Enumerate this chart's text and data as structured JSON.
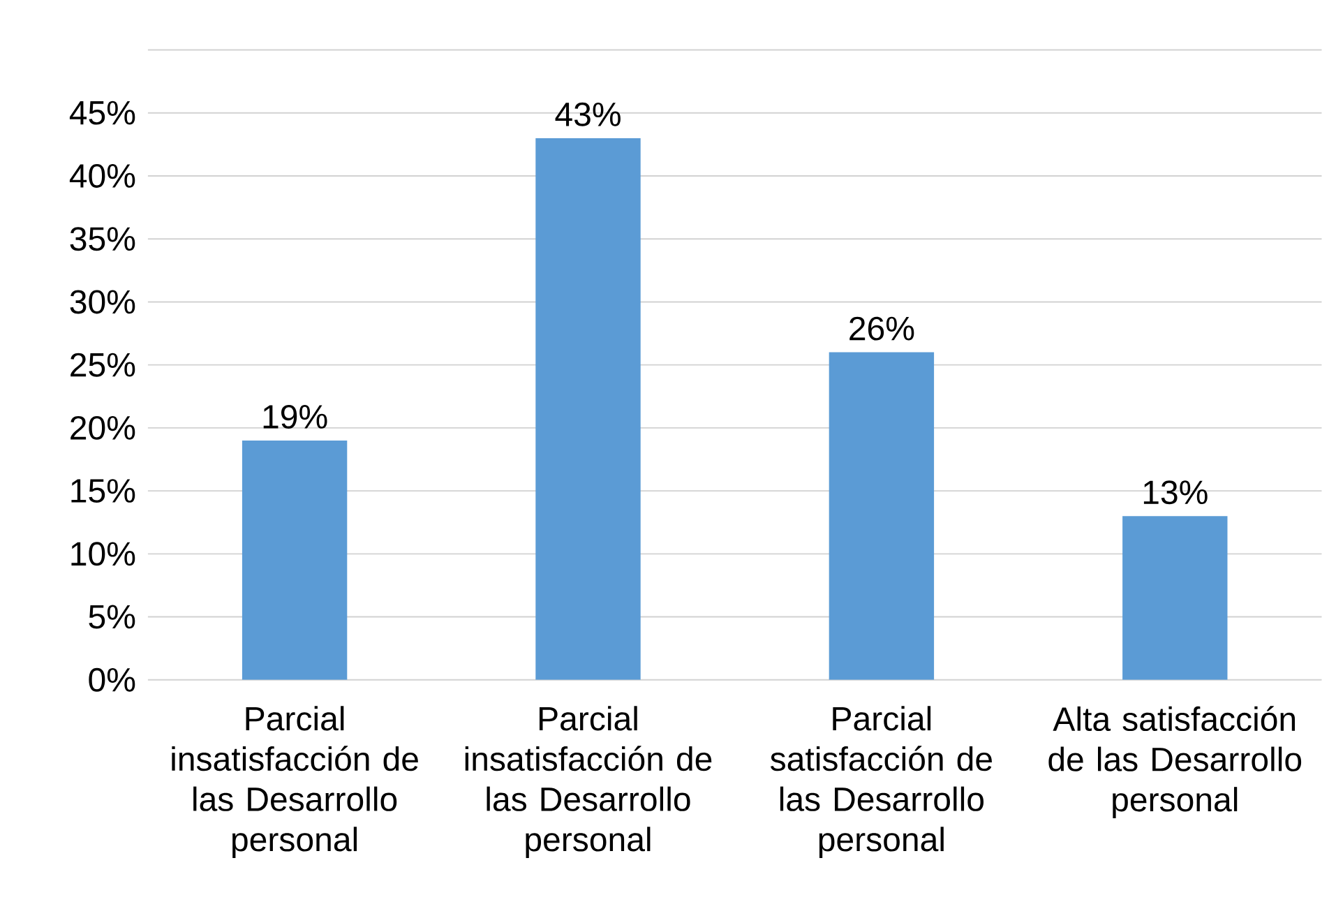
{
  "chart_data": {
    "type": "bar",
    "categories": [
      "Parcial insatisfacción de las Desarrollo personal",
      "Parcial insatisfacción de las Desarrollo personal",
      "Parcial satisfacción de las Desarrollo personal",
      "Alta satisfacción de las Desarrollo personal"
    ],
    "values": [
      19,
      43,
      26,
      13
    ],
    "value_labels": [
      "19%",
      "43%",
      "26%",
      "13%"
    ],
    "color": "#5b9bd5",
    "ylim": [
      0,
      50
    ],
    "yticks": [
      {
        "value": 0,
        "label": "0%"
      },
      {
        "value": 5,
        "label": "5%"
      },
      {
        "value": 10,
        "label": "10%"
      },
      {
        "value": 15,
        "label": "15%"
      },
      {
        "value": 20,
        "label": "20%"
      },
      {
        "value": 25,
        "label": "25%"
      },
      {
        "value": 30,
        "label": "30%"
      },
      {
        "value": 35,
        "label": "35%"
      },
      {
        "value": 40,
        "label": "40%"
      },
      {
        "value": 45,
        "label": "45%"
      },
      {
        "value": 50,
        "label": null
      }
    ],
    "grid": "y"
  }
}
